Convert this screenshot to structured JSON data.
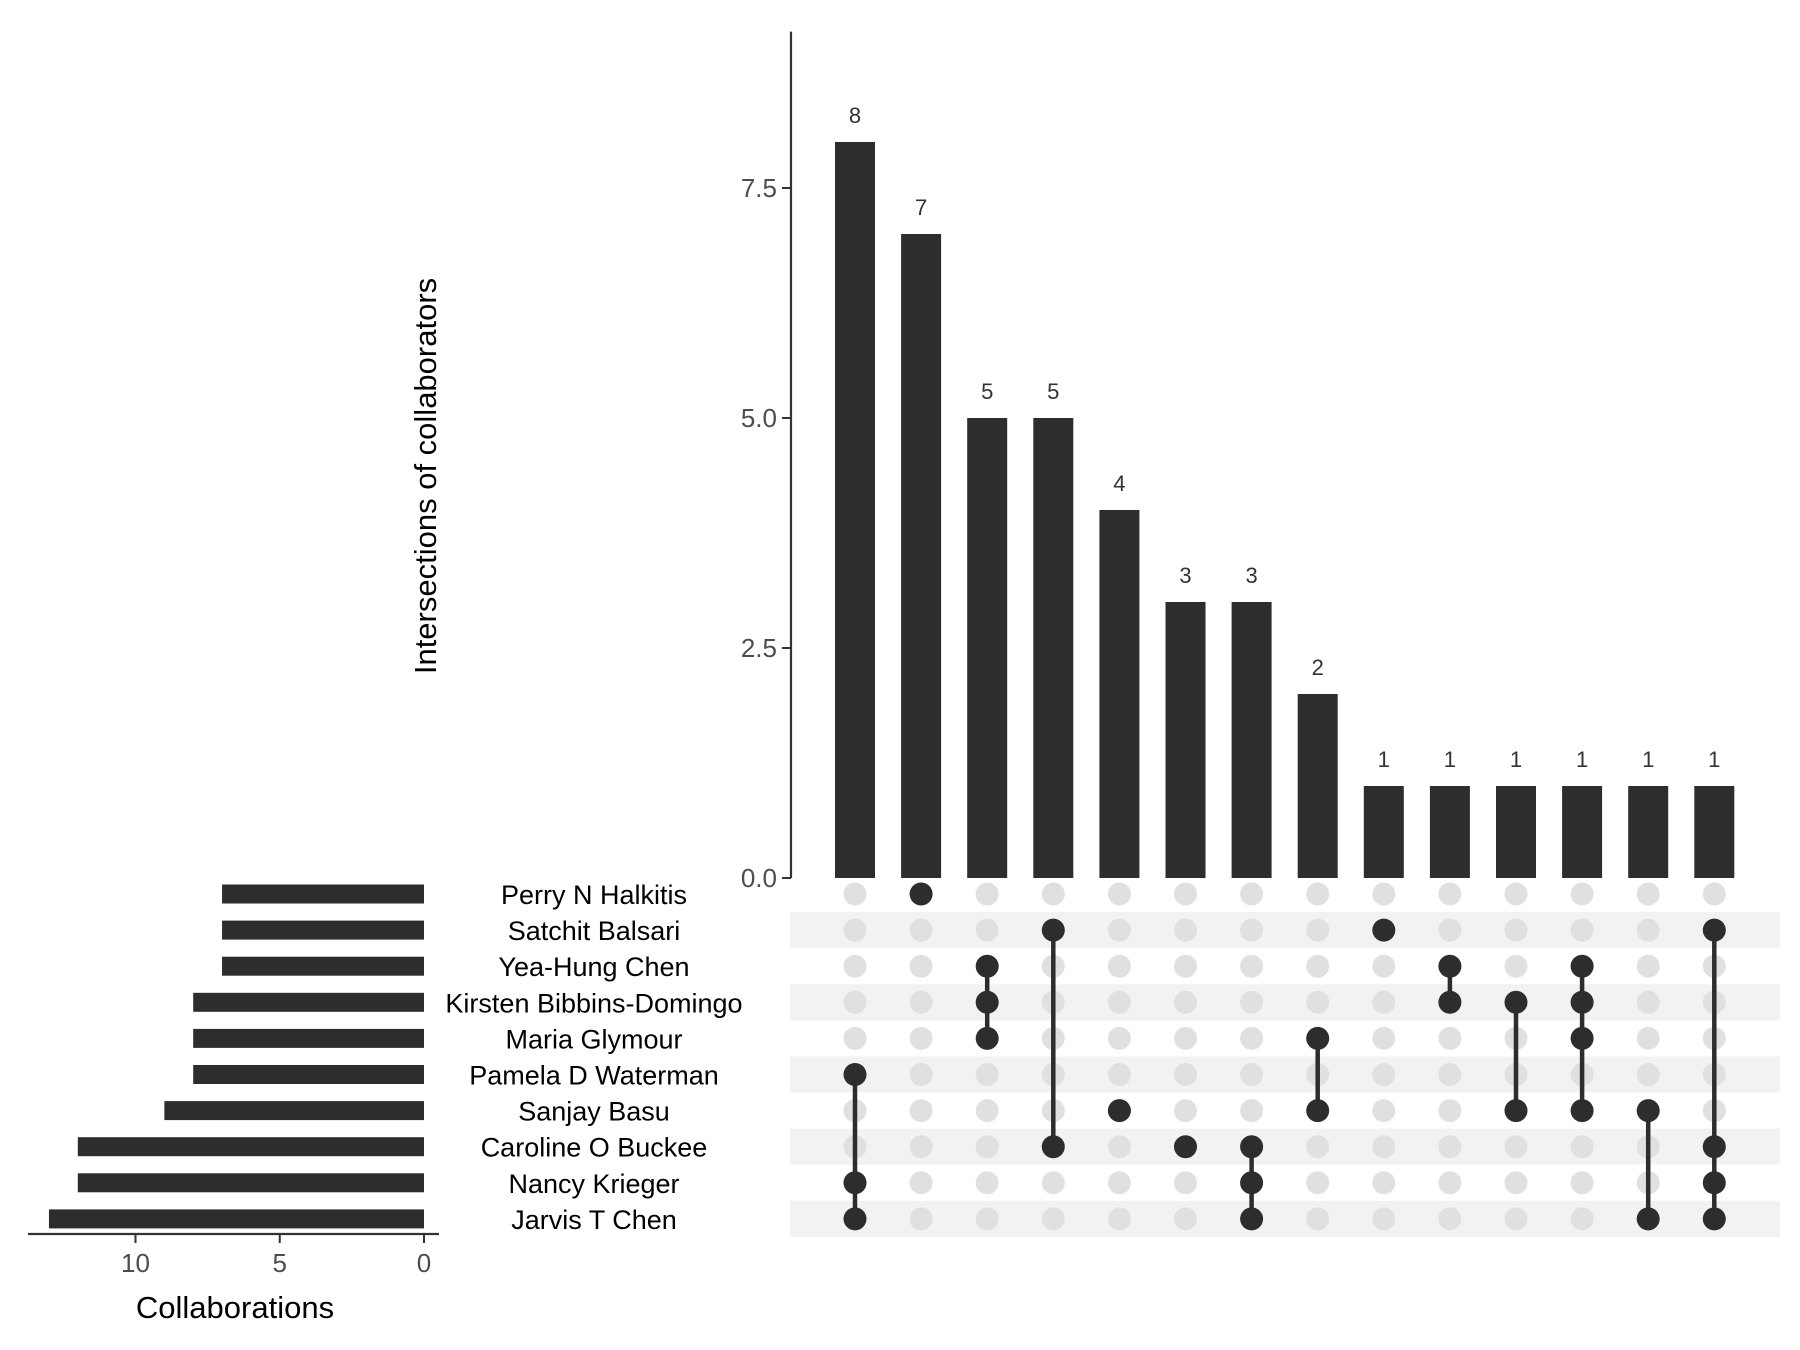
{
  "chart_data": {
    "type": "upset",
    "ylabel": "Intersections of collaborators",
    "xlabel": "Collaborations",
    "intersection_axis": {
      "ylim": [
        0,
        9.2
      ],
      "ticks": [
        0.0,
        2.5,
        5.0,
        7.5
      ],
      "tick_labels": [
        "0.0",
        "2.5",
        "5.0",
        "7.5"
      ]
    },
    "set_axis": {
      "xlim": [
        0,
        13.5
      ],
      "reversed": true,
      "ticks": [
        10,
        5,
        0
      ],
      "tick_labels": [
        "10",
        "5",
        "0"
      ]
    },
    "sets": [
      {
        "name": "Perry N Halkitis",
        "size": 7
      },
      {
        "name": "Satchit Balsari",
        "size": 7
      },
      {
        "name": "Yea-Hung Chen",
        "size": 7
      },
      {
        "name": "Kirsten Bibbins-Domingo",
        "size": 8
      },
      {
        "name": "Maria Glymour",
        "size": 8
      },
      {
        "name": "Pamela D Waterman",
        "size": 8
      },
      {
        "name": "Sanjay Basu",
        "size": 9
      },
      {
        "name": "Caroline O Buckee",
        "size": 12
      },
      {
        "name": "Nancy Krieger",
        "size": 12
      },
      {
        "name": "Jarvis T Chen",
        "size": 13
      }
    ],
    "intersections": [
      {
        "value": 8,
        "label": "8",
        "members": [
          "Pamela D Waterman",
          "Nancy Krieger",
          "Jarvis T Chen"
        ]
      },
      {
        "value": 7,
        "label": "7",
        "members": [
          "Perry N Halkitis"
        ]
      },
      {
        "value": 5,
        "label": "5",
        "members": [
          "Yea-Hung Chen",
          "Kirsten Bibbins-Domingo",
          "Maria Glymour"
        ]
      },
      {
        "value": 5,
        "label": "5",
        "members": [
          "Satchit Balsari",
          "Caroline O Buckee"
        ]
      },
      {
        "value": 4,
        "label": "4",
        "members": [
          "Sanjay Basu"
        ]
      },
      {
        "value": 3,
        "label": "3",
        "members": [
          "Caroline O Buckee"
        ]
      },
      {
        "value": 3,
        "label": "3",
        "members": [
          "Caroline O Buckee",
          "Nancy Krieger",
          "Jarvis T Chen"
        ]
      },
      {
        "value": 2,
        "label": "2",
        "members": [
          "Maria Glymour",
          "Sanjay Basu"
        ]
      },
      {
        "value": 1,
        "label": "1",
        "members": [
          "Satchit Balsari"
        ]
      },
      {
        "value": 1,
        "label": "1",
        "members": [
          "Yea-Hung Chen",
          "Kirsten Bibbins-Domingo"
        ]
      },
      {
        "value": 1,
        "label": "1",
        "members": [
          "Kirsten Bibbins-Domingo",
          "Sanjay Basu"
        ]
      },
      {
        "value": 1,
        "label": "1",
        "members": [
          "Yea-Hung Chen",
          "Kirsten Bibbins-Domingo",
          "Maria Glymour",
          "Sanjay Basu"
        ]
      },
      {
        "value": 1,
        "label": "1",
        "members": [
          "Sanjay Basu",
          "Jarvis T Chen"
        ]
      },
      {
        "value": 1,
        "label": "1",
        "members": [
          "Satchit Balsari",
          "Caroline O Buckee",
          "Nancy Krieger",
          "Jarvis T Chen"
        ]
      }
    ],
    "grid": false,
    "colors": {
      "bar": "#2d2d2d",
      "dot_active": "#2d2d2d",
      "dot_inactive": "#e0e0e0",
      "stripe": "#f2f2f2"
    }
  }
}
